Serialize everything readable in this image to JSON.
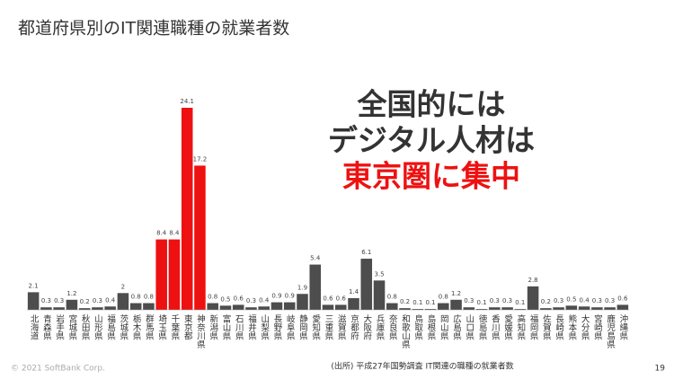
{
  "chart_data": {
    "type": "bar",
    "title": "都道府県別のIT関連職種の就業者数",
    "callout": [
      "全国的には",
      "デジタル人材は",
      "東京圏に集中"
    ],
    "source": "(出所) 平成27年国勢調査 IT関連の職種の就業者数",
    "copyright": "© 2021 SoftBank Corp.",
    "page_number": "19",
    "categories": [
      "北海道",
      "青森県",
      "岩手県",
      "宮城県",
      "秋田県",
      "山形県",
      "福島県",
      "茨城県",
      "栃木県",
      "群馬県",
      "埼玉県",
      "千葉県",
      "東京都",
      "神奈川県",
      "新潟県",
      "富山県",
      "石川県",
      "福井県",
      "山梨県",
      "長野県",
      "岐阜県",
      "静岡県",
      "愛知県",
      "三重県",
      "滋賀県",
      "京都府",
      "大阪府",
      "兵庫県",
      "奈良県",
      "和歌山県",
      "鳥取県",
      "島根県",
      "岡山県",
      "広島県",
      "山口県",
      "徳島県",
      "香川県",
      "愛媛県",
      "高知県",
      "福岡県",
      "佐賀県",
      "長崎県",
      "熊本県",
      "大分県",
      "宮崎県",
      "鹿児島県",
      "沖縄県"
    ],
    "values": [
      2.1,
      0.3,
      0.3,
      1.2,
      0.2,
      0.3,
      0.4,
      2,
      0.8,
      0.8,
      8.4,
      8.4,
      24.1,
      17.2,
      0.8,
      0.5,
      0.6,
      0.3,
      0.4,
      0.9,
      0.9,
      1.9,
      5.4,
      0.6,
      0.6,
      1.4,
      6.1,
      3.5,
      0.8,
      0.2,
      0.1,
      0.1,
      0.8,
      1.2,
      0.3,
      0.1,
      0.3,
      0.3,
      0.1,
      2.8,
      0.2,
      0.3,
      0.5,
      0.4,
      0.3,
      0.3,
      0.6
    ],
    "color": "#4d4d4d",
    "highlight_color": "#ee1111",
    "highlight_indices": [
      10,
      11,
      12,
      13
    ],
    "callout_highlight_index": 2
  }
}
